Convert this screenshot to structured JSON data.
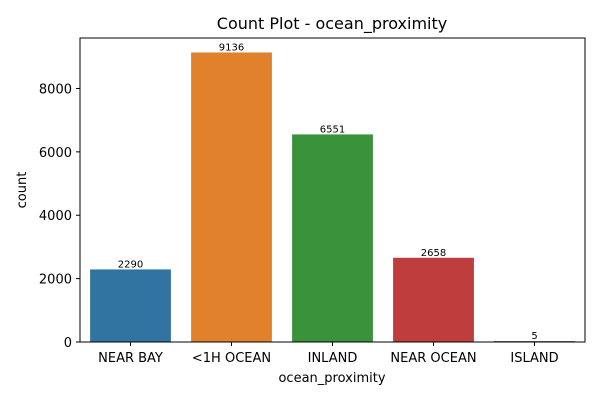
{
  "chart_data": {
    "type": "bar",
    "title": "Count Plot - ocean_proximity",
    "xlabel": "ocean_proximity",
    "ylabel": "count",
    "categories": [
      "NEAR BAY",
      "<1H OCEAN",
      "INLAND",
      "NEAR OCEAN",
      "ISLAND"
    ],
    "values": [
      2290,
      9136,
      6551,
      2658,
      5
    ],
    "data_labels": [
      "2290",
      "9136",
      "6551",
      "2658",
      "5"
    ],
    "colors": [
      "#3274a1",
      "#e1812c",
      "#3a923a",
      "#c03d3e",
      "#9372b2"
    ],
    "yticks": [
      0,
      2000,
      4000,
      6000,
      8000
    ],
    "ytick_labels": [
      "0",
      "2000",
      "4000",
      "6000",
      "8000"
    ],
    "ylim": [
      0,
      9592.8
    ],
    "grid": false,
    "legend": "none"
  }
}
